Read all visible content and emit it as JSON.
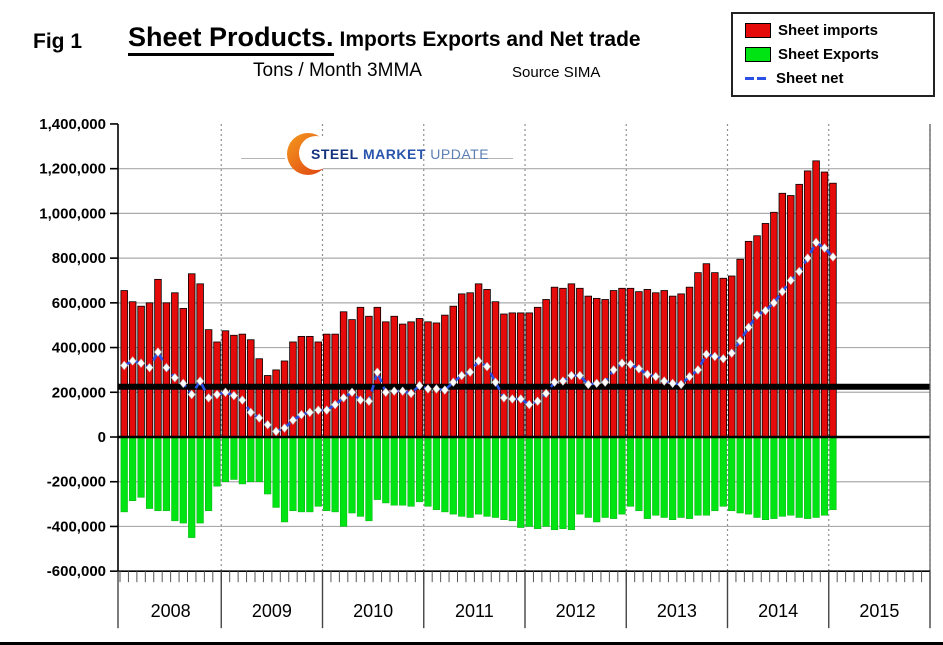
{
  "figure": {
    "fig_label": "Fig 1",
    "title": "Sheet Products.",
    "title_rest": "Imports Exports and Net trade",
    "subtitle": "Tons / Month 3MMA",
    "source": "Source SIMA"
  },
  "logo": {
    "word1": "STEEL",
    "word2": "MARKET",
    "word3": "UPDATE"
  },
  "legend": [
    {
      "label": "Sheet imports",
      "swatch": "red-box",
      "color": "#e60b0b"
    },
    {
      "label": "Sheet Exports",
      "swatch": "green-box",
      "color": "#00e414"
    },
    {
      "label": "Sheet net",
      "swatch": "blue-dashes",
      "color": "#2b50e6"
    }
  ],
  "chart_data": {
    "type": "bar",
    "title": "Sheet Products. Imports Exports and Net trade",
    "subtitle": "Tons / Month 3MMA",
    "source": "Source SIMA",
    "unit": "tons/month (3-month moving average)",
    "x_first_month": "2008-01",
    "x_last_month": "2015-01",
    "months_per_year": 12,
    "x_year_labels": [
      "2008",
      "2009",
      "2010",
      "2011",
      "2012",
      "2013",
      "2014",
      "2015"
    ],
    "ylim": [
      -600000,
      1400000
    ],
    "ytick_interval": 200000,
    "y_tick_labels": [
      "1,400,000",
      "1,200,000",
      "1,000,000",
      "800,000",
      "600,000",
      "400,000",
      "200,000",
      "0",
      "-200,000",
      "-400,000",
      "-600,000"
    ],
    "grid": true,
    "legend_position": "top-right",
    "reference_line": 225000,
    "series": [
      {
        "name": "Sheet imports",
        "type": "bar",
        "color": "#e60b0b",
        "values": [
          655000,
          605000,
          585000,
          600000,
          705000,
          600000,
          645000,
          575000,
          730000,
          685000,
          480000,
          425000,
          475000,
          455000,
          460000,
          435000,
          350000,
          275000,
          300000,
          340000,
          425000,
          450000,
          450000,
          425000,
          460000,
          460000,
          560000,
          525000,
          580000,
          540000,
          580000,
          515000,
          540000,
          505000,
          515000,
          530000,
          515000,
          510000,
          545000,
          585000,
          640000,
          645000,
          685000,
          660000,
          605000,
          550000,
          555000,
          555000,
          555000,
          580000,
          615000,
          670000,
          665000,
          685000,
          665000,
          630000,
          620000,
          615000,
          655000,
          665000,
          665000,
          650000,
          660000,
          645000,
          655000,
          630000,
          640000,
          670000,
          735000,
          775000,
          735000,
          710000,
          720000,
          795000,
          875000,
          900000,
          955000,
          1005000,
          1090000,
          1080000,
          1130000,
          1190000,
          1235000,
          1185000,
          1135000
        ]
      },
      {
        "name": "Sheet Exports",
        "type": "bar",
        "color": "#00e414",
        "values": [
          -335000,
          -285000,
          -270000,
          -320000,
          -330000,
          -330000,
          -375000,
          -385000,
          -450000,
          -385000,
          -330000,
          -220000,
          -200000,
          -190000,
          -210000,
          -200000,
          -200000,
          -255000,
          -315000,
          -380000,
          -330000,
          -335000,
          -335000,
          -310000,
          -330000,
          -335000,
          -400000,
          -340000,
          -355000,
          -375000,
          -280000,
          -295000,
          -305000,
          -305000,
          -310000,
          -290000,
          -310000,
          -325000,
          -335000,
          -345000,
          -355000,
          -360000,
          -345000,
          -355000,
          -360000,
          -370000,
          -375000,
          -405000,
          -400000,
          -410000,
          -400000,
          -415000,
          -410000,
          -415000,
          -345000,
          -360000,
          -380000,
          -360000,
          -365000,
          -345000,
          -310000,
          -330000,
          -365000,
          -350000,
          -360000,
          -370000,
          -360000,
          -365000,
          -350000,
          -350000,
          -330000,
          -310000,
          -330000,
          -340000,
          -345000,
          -360000,
          -370000,
          -365000,
          -355000,
          -350000,
          -360000,
          -365000,
          -360000,
          -350000,
          -325000
        ]
      },
      {
        "name": "Sheet net",
        "type": "line",
        "style": "dashed",
        "color": "#2b50e6",
        "marker": "white-diamond",
        "values": [
          320000,
          340000,
          330000,
          310000,
          380000,
          310000,
          265000,
          240000,
          190000,
          250000,
          175000,
          190000,
          200000,
          185000,
          165000,
          110000,
          85000,
          55000,
          25000,
          40000,
          75000,
          100000,
          110000,
          120000,
          120000,
          145000,
          175000,
          200000,
          165000,
          160000,
          290000,
          200000,
          205000,
          205000,
          195000,
          230000,
          215000,
          215000,
          210000,
          245000,
          275000,
          290000,
          340000,
          315000,
          245000,
          175000,
          170000,
          170000,
          145000,
          160000,
          195000,
          245000,
          250000,
          275000,
          275000,
          235000,
          240000,
          245000,
          300000,
          330000,
          325000,
          305000,
          280000,
          270000,
          250000,
          240000,
          235000,
          270000,
          300000,
          370000,
          360000,
          350000,
          375000,
          430000,
          490000,
          545000,
          565000,
          600000,
          650000,
          700000,
          740000,
          800000,
          870000,
          845000,
          805000
        ]
      }
    ]
  }
}
